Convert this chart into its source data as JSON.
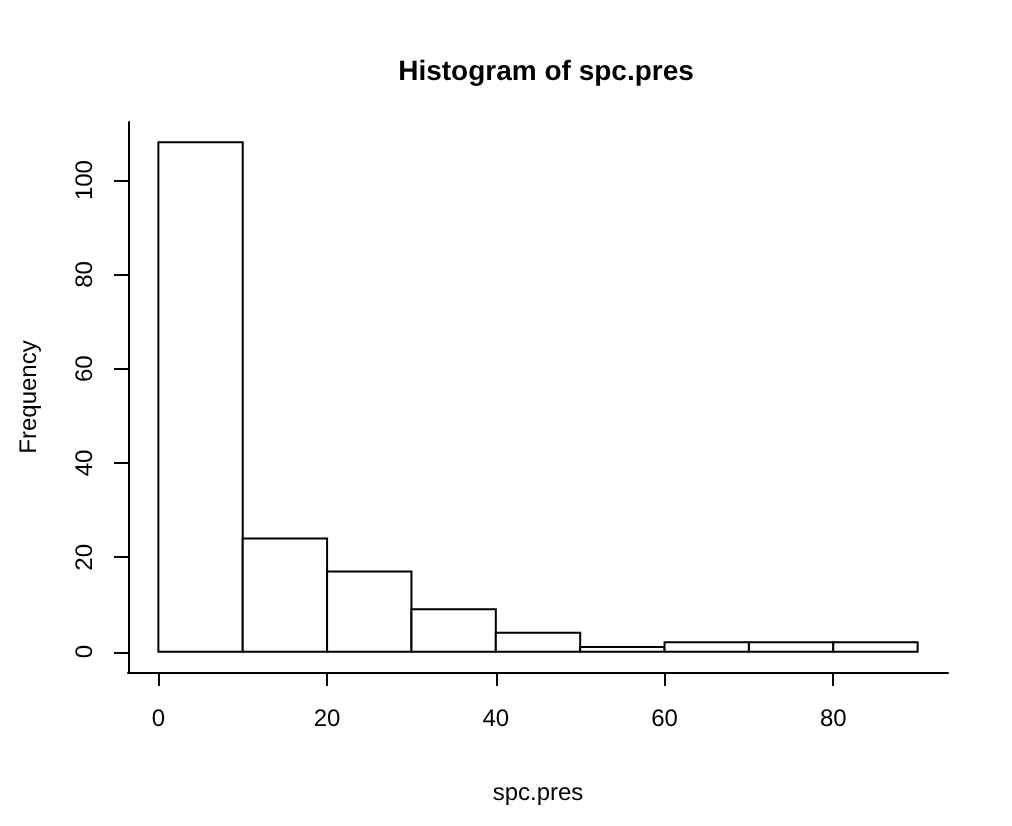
{
  "chart_data": {
    "type": "histogram",
    "title": "Histogram of spc.pres",
    "xlabel": "spc.pres",
    "ylabel": "Frequency",
    "bins": [
      0,
      10,
      20,
      30,
      40,
      50,
      60,
      70,
      80,
      90
    ],
    "values": [
      108,
      24,
      17,
      9,
      4,
      1,
      2,
      2,
      2
    ],
    "color": "#ffffff",
    "xlim": [
      -3.6,
      93.6
    ],
    "ylim": [
      -4.32,
      112.32
    ],
    "xticks": [
      0,
      20,
      40,
      60,
      80
    ],
    "yticks": [
      0,
      20,
      40,
      60,
      80,
      100
    ]
  }
}
